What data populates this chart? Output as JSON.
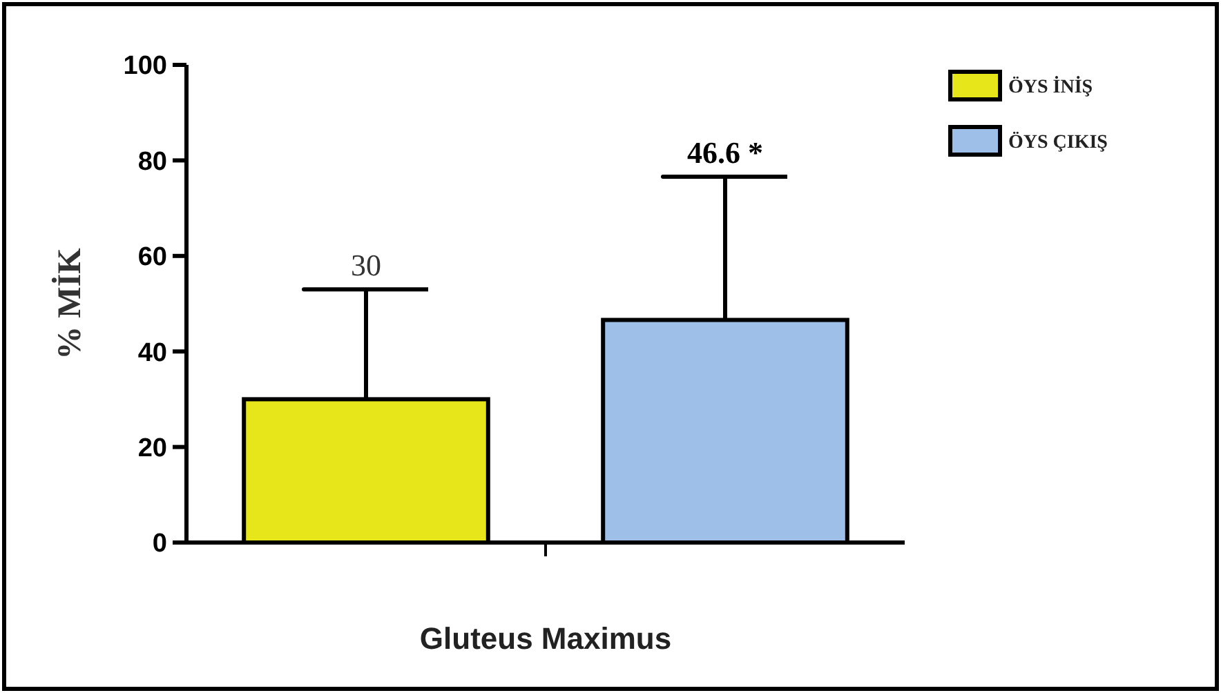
{
  "chart_data": {
    "type": "bar",
    "categories": [
      null
    ],
    "xlabel": "Gluteus Maximus",
    "ylabel": "% MİK",
    "series": [
      {
        "name": "ÖYS İNİŞ",
        "color": "#e6e61a",
        "values": [
          30
        ],
        "errors": [
          [
            30,
            53
          ]
        ]
      },
      {
        "name": "ÖYS ÇIKIŞ",
        "color": "#9dbfe8",
        "values": [
          46.6
        ],
        "errors": [
          [
            46.6,
            76.6
          ]
        ]
      }
    ],
    "annotations": [
      {
        "text": "30",
        "y": 53
      },
      {
        "text": "46.6 *",
        "y": 76.6
      }
    ],
    "ylim": [
      0,
      100
    ],
    "yticks": [
      0,
      20,
      40,
      60,
      80,
      100
    ],
    "grid": false,
    "legend": "top right"
  }
}
